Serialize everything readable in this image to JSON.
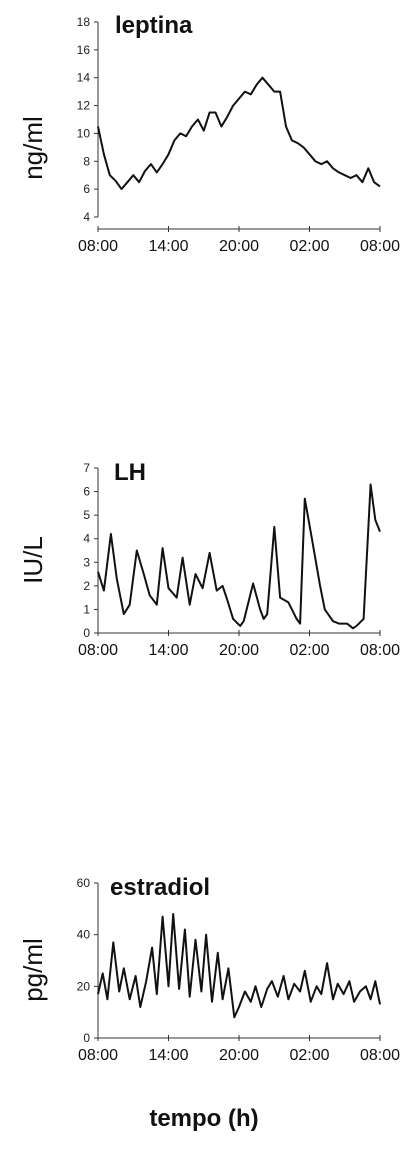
{
  "xlabel": "tempo (h)",
  "chart_data": [
    {
      "type": "line",
      "title": "leptina",
      "ylabel": "ng/ml",
      "ylim": [
        4,
        18
      ],
      "yticks": [
        "4",
        "6",
        "8",
        "10",
        "12",
        "14",
        "16",
        "18"
      ],
      "xticks": [
        "08:00",
        "14:00",
        "20:00",
        "02:00",
        "08:00"
      ],
      "series": [
        {
          "x": [
            0,
            0.5,
            1,
            1.5,
            2,
            2.5,
            3,
            3.5,
            4,
            4.5,
            5,
            5.5,
            6,
            6.5,
            7,
            7.5,
            8,
            8.5,
            9,
            9.5,
            10,
            10.5,
            11,
            11.5,
            12,
            12.5,
            13,
            13.5,
            14,
            14.5,
            15,
            15.5,
            16,
            16.5,
            17,
            17.5,
            18,
            18.5,
            19,
            19.5,
            20,
            20.5,
            21,
            21.5,
            22,
            22.5,
            23,
            23.5,
            24
          ],
          "values": [
            10.5,
            8.5,
            7.0,
            6.6,
            6.0,
            6.5,
            7.0,
            6.5,
            7.3,
            7.8,
            7.2,
            7.8,
            8.5,
            9.5,
            10.0,
            9.8,
            10.5,
            11.0,
            10.2,
            11.5,
            11.5,
            10.5,
            11.2,
            12.0,
            12.5,
            13.0,
            12.8,
            13.5,
            14.0,
            13.5,
            13.0,
            13.0,
            10.5,
            9.5,
            9.3,
            9.0,
            8.5,
            8.0,
            7.8,
            8.0,
            7.5,
            7.2,
            7.0,
            6.8,
            7.0,
            6.5,
            7.5,
            6.5,
            6.2
          ]
        }
      ]
    },
    {
      "type": "line",
      "title": "LH",
      "ylabel": "IU/L",
      "ylim": [
        0,
        7
      ],
      "yticks": [
        "0",
        "1",
        "2",
        "3",
        "4",
        "5",
        "6",
        "7"
      ],
      "xticks": [
        "08:00",
        "14:00",
        "20:00",
        "02:00",
        "08:00"
      ],
      "series": [
        {
          "x": [
            0,
            0.5,
            1.1,
            1.6,
            2.2,
            2.7,
            3.3,
            3.9,
            4.4,
            5.0,
            5.5,
            6.0,
            6.7,
            7.2,
            7.8,
            8.3,
            8.9,
            9.5,
            10.1,
            10.6,
            11.0,
            11.5,
            12.1,
            12.4,
            13.2,
            13.8,
            14.1,
            14.4,
            15.0,
            15.5,
            16.2,
            16.6,
            16.9,
            17.2,
            17.6,
            18.2,
            18.9,
            19.3,
            20.0,
            20.5,
            21.2,
            21.7,
            22.0,
            22.6,
            23.2,
            23.6,
            24.0
          ],
          "values": [
            2.6,
            1.8,
            4.2,
            2.3,
            0.8,
            1.2,
            3.5,
            2.5,
            1.6,
            1.2,
            3.6,
            1.9,
            1.5,
            3.2,
            1.2,
            2.5,
            1.9,
            3.4,
            1.8,
            2.0,
            1.4,
            0.6,
            0.3,
            0.5,
            2.1,
            1.0,
            0.6,
            0.8,
            4.5,
            1.5,
            1.3,
            0.9,
            0.6,
            0.4,
            5.7,
            4.0,
            2.0,
            1.0,
            0.5,
            0.4,
            0.4,
            0.2,
            0.3,
            0.6,
            6.3,
            4.8,
            4.3
          ]
        }
      ]
    },
    {
      "type": "line",
      "title": "estradiol",
      "ylabel": "pg/ml",
      "ylim": [
        0,
        60
      ],
      "yticks": [
        "0",
        "20",
        "40",
        "60"
      ],
      "xticks": [
        "08:00",
        "14:00",
        "20:00",
        "02:00",
        "08:00"
      ],
      "series": [
        {
          "x": [
            0,
            0.4,
            0.8,
            1.3,
            1.8,
            2.2,
            2.7,
            3.2,
            3.6,
            4.1,
            4.6,
            5.0,
            5.5,
            6.0,
            6.4,
            6.9,
            7.4,
            7.8,
            8.3,
            8.8,
            9.2,
            9.7,
            10.2,
            10.6,
            11.1,
            11.6,
            12.0,
            12.5,
            13.0,
            13.4,
            13.9,
            14.4,
            14.8,
            15.3,
            15.8,
            16.2,
            16.7,
            17.2,
            17.6,
            18.1,
            18.6,
            19.0,
            19.5,
            20.0,
            20.4,
            20.9,
            21.4,
            21.8,
            22.3,
            22.8,
            23.2,
            23.6,
            24.0
          ],
          "values": [
            17,
            25,
            15,
            37,
            18,
            27,
            15,
            24,
            12,
            22,
            35,
            17,
            47,
            20,
            48,
            19,
            42,
            16,
            38,
            18,
            40,
            14,
            33,
            15,
            27,
            8,
            12,
            18,
            14,
            20,
            12,
            19,
            22,
            16,
            24,
            15,
            21,
            18,
            26,
            14,
            20,
            17,
            29,
            15,
            21,
            17,
            22,
            14,
            18,
            20,
            15,
            22,
            13
          ]
        }
      ]
    }
  ]
}
